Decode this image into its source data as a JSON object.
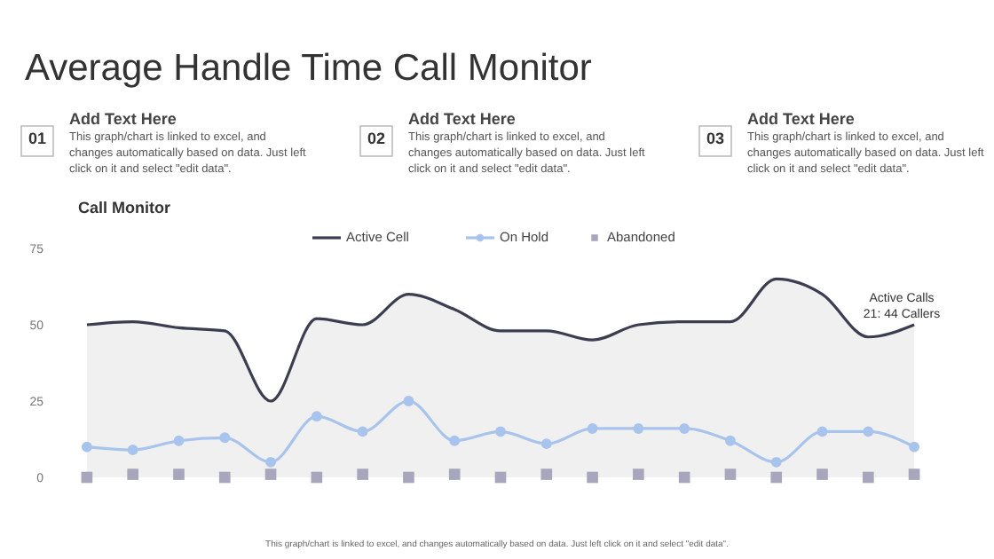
{
  "chart_data": {
    "type": "line",
    "title": "Average Handle Time Call Monitor",
    "subtitle": "Call Monitor",
    "categories": [
      null,
      null,
      null,
      null,
      null,
      null,
      null,
      null,
      null,
      null,
      null,
      null,
      null,
      null,
      null,
      null,
      null,
      null,
      null
    ],
    "series": [
      {
        "name": "Active Cell",
        "type": "area",
        "color": "#3d3d52",
        "marker": "none",
        "values": [
          50,
          51,
          49,
          48,
          25,
          52,
          50,
          60,
          55,
          48,
          48,
          45,
          50,
          51,
          51,
          65,
          60,
          46,
          50
        ]
      },
      {
        "name": "On Hold",
        "type": "line",
        "color": "#a9c4ec",
        "marker": "circle",
        "values": [
          10,
          9,
          12,
          13,
          5,
          20,
          15,
          25,
          12,
          15,
          11,
          16,
          16,
          16,
          12,
          5,
          15,
          15,
          10
        ]
      },
      {
        "name": "Abandoned",
        "type": "scatter",
        "color": "#a8a6bc",
        "marker": "square",
        "values": [
          0,
          1,
          1,
          0,
          1,
          0,
          1,
          0,
          1,
          0,
          1,
          0,
          1,
          0,
          1,
          0,
          1,
          0,
          1
        ]
      }
    ],
    "ylim": [
      0,
      75
    ],
    "yticks": [
      0,
      25,
      50,
      75
    ],
    "grid": false,
    "legend": "top",
    "tick_labels": "y",
    "annotations": [
      "01",
      "Add Text Here",
      "This graph/chart is linked to excel, and changes automatically based on data. Just left click on it and select \"edit data\".",
      "02",
      "Add Text Here",
      "This graph/chart is linked to excel, and changes automatically based on data. Just left click on it and select \"edit data\".",
      "03",
      "Add Text Here",
      "This graph/chart is linked to excel, and changes automatically based on data. Just left click on it and select \"edit data\".",
      "Active Calls\n21: 44 Callers",
      "This graph/chart is linked to excel, and changes automatically based on data. Just left click on it and select \"edit data\"."
    ]
  }
}
